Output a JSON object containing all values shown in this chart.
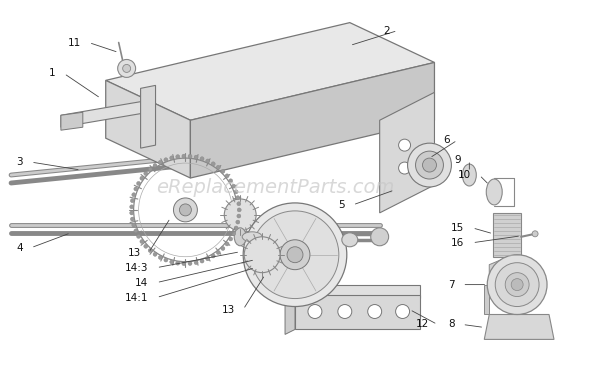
{
  "background_color": "#ffffff",
  "watermark_text": "eReplacementParts.com",
  "watermark_color": "#c8c8c8",
  "watermark_fontsize": 14,
  "fig_width": 5.9,
  "fig_height": 3.65,
  "dpi": 100,
  "label_fontsize": 7.5,
  "label_color": "#111111",
  "stroke": "#555555",
  "stroke_light": "#999999",
  "lw_main": 1.0,
  "lw_thin": 0.6
}
